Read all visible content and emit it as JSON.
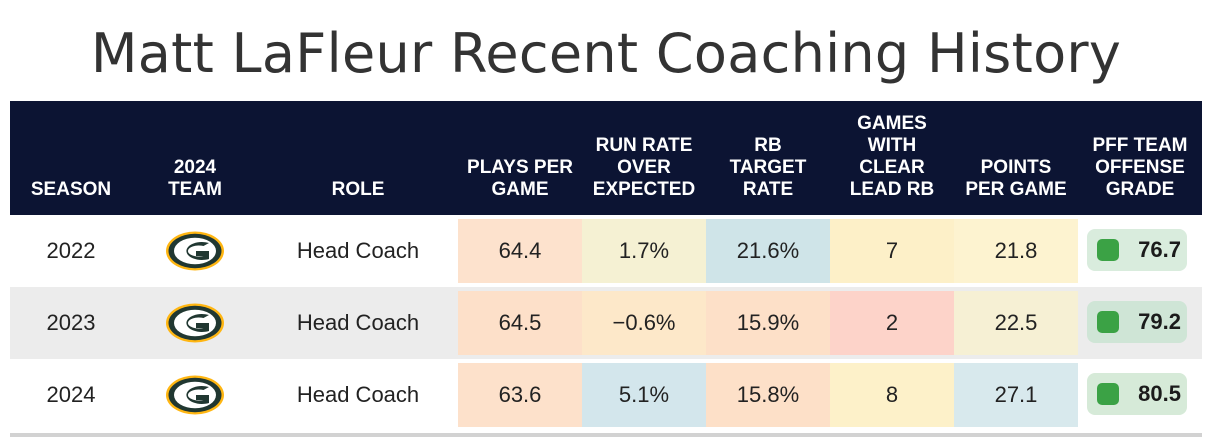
{
  "title": "Matt LaFleur Recent Coaching History",
  "columns": [
    "SEASON",
    "2024\nTEAM",
    "ROLE",
    "PLAYS PER\nGAME",
    "RUN RATE\nOVER\nEXPECTED",
    "RB\nTARGET\nRATE",
    "GAMES\nWITH\nCLEAR\nLEAD RB",
    "POINTS\nPER GAME",
    "PFF TEAM\nOFFENSE\nGRADE"
  ],
  "rows": [
    {
      "season": "2022",
      "team_icon": "packers-logo",
      "role": "Head Coach",
      "plays_per_game": "64.4",
      "run_rate_over_expected": "1.7%",
      "rb_target_rate": "21.6%",
      "games_with_clear_lead_rb": "7",
      "points_per_game": "21.8",
      "pff_grade": "76.7",
      "colors": [
        "#fde2cd",
        "#f5f1d3",
        "#cfe4e8",
        "#fdf0c8",
        "#fdf3d0"
      ],
      "grade_bg": "#d9ecdd",
      "stripe": false
    },
    {
      "season": "2023",
      "team_icon": "packers-logo",
      "role": "Head Coach",
      "plays_per_game": "64.5",
      "run_rate_over_expected": "−0.6%",
      "rb_target_rate": "15.9%",
      "games_with_clear_lead_rb": "2",
      "points_per_game": "22.5",
      "pff_grade": "79.2",
      "colors": [
        "#fde0c9",
        "#fde8c9",
        "#fde0c8",
        "#fdd3c9",
        "#f6f0d4"
      ],
      "grade_bg": "#cfe5d6",
      "stripe": true
    },
    {
      "season": "2024",
      "team_icon": "packers-logo",
      "role": "Head Coach",
      "plays_per_game": "63.6",
      "run_rate_over_expected": "5.1%",
      "rb_target_rate": "15.8%",
      "games_with_clear_lead_rb": "8",
      "points_per_game": "27.1",
      "pff_grade": "80.5",
      "colors": [
        "#fde1cb",
        "#d3e6ec",
        "#fde0c8",
        "#fdf1c9",
        "#d8e9ed"
      ],
      "grade_bg": "#d6ead8",
      "stripe": false
    }
  ]
}
